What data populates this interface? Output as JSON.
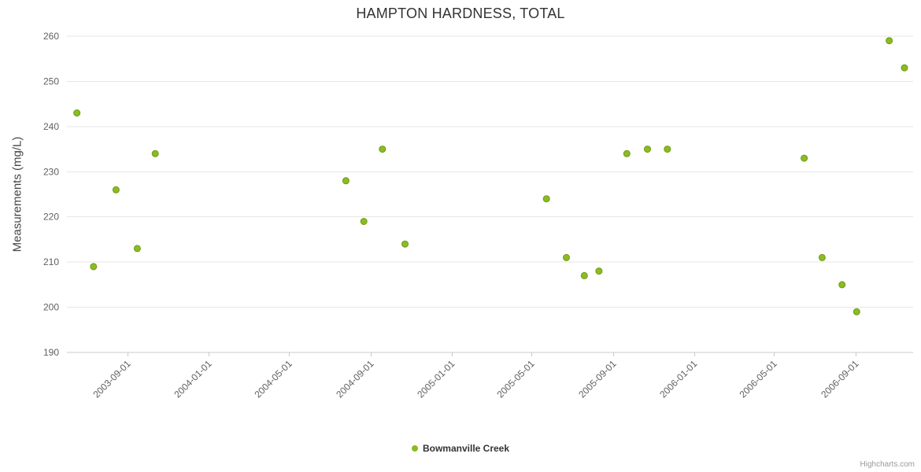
{
  "title": "HAMPTON HARDNESS, TOTAL",
  "credit": "Highcharts.com",
  "legend": {
    "series_label": "Bowmanville Creek"
  },
  "colors": {
    "series": "#8bbc21",
    "series_stroke": "#6f9a12",
    "grid": "#e6e6e6",
    "axis_line": "#c9c9c9",
    "tick_label": "#606060",
    "title_text": "#333333"
  },
  "chart_data": {
    "type": "scatter",
    "title": "HAMPTON HARDNESS, TOTAL",
    "xlabel": "",
    "ylabel": "Measurements (mg/L)",
    "ylim": [
      190,
      260
    ],
    "y_ticks": [
      190,
      200,
      210,
      220,
      230,
      240,
      250,
      260
    ],
    "xlim": [
      "2003-06-01",
      "2006-11-26"
    ],
    "x_ticks": [
      "2003-09-01",
      "2004-01-01",
      "2004-05-01",
      "2004-09-01",
      "2005-01-01",
      "2005-05-01",
      "2005-09-01",
      "2006-01-01",
      "2006-05-01",
      "2006-09-01"
    ],
    "grid": "horizontal",
    "legend_position": "bottom-center",
    "series": [
      {
        "name": "Bowmanville Creek",
        "color": "#8bbc21",
        "stroke": "#6f9a12",
        "points": [
          {
            "date": "2003-06-16",
            "value": 243
          },
          {
            "date": "2003-07-11",
            "value": 209
          },
          {
            "date": "2003-08-14",
            "value": 226
          },
          {
            "date": "2003-09-15",
            "value": 213
          },
          {
            "date": "2003-10-12",
            "value": 234
          },
          {
            "date": "2004-07-25",
            "value": 228
          },
          {
            "date": "2004-08-21",
            "value": 219
          },
          {
            "date": "2004-09-18",
            "value": 235
          },
          {
            "date": "2004-10-22",
            "value": 214
          },
          {
            "date": "2005-05-23",
            "value": 224
          },
          {
            "date": "2005-06-22",
            "value": 211
          },
          {
            "date": "2005-07-19",
            "value": 207
          },
          {
            "date": "2005-08-10",
            "value": 208
          },
          {
            "date": "2005-09-21",
            "value": 234
          },
          {
            "date": "2005-10-22",
            "value": 235
          },
          {
            "date": "2005-11-21",
            "value": 235
          },
          {
            "date": "2006-06-15",
            "value": 233
          },
          {
            "date": "2006-07-12",
            "value": 211
          },
          {
            "date": "2006-08-11",
            "value": 205
          },
          {
            "date": "2006-09-02",
            "value": 199
          },
          {
            "date": "2006-10-21",
            "value": 259
          },
          {
            "date": "2006-11-13",
            "value": 253
          }
        ]
      }
    ]
  }
}
